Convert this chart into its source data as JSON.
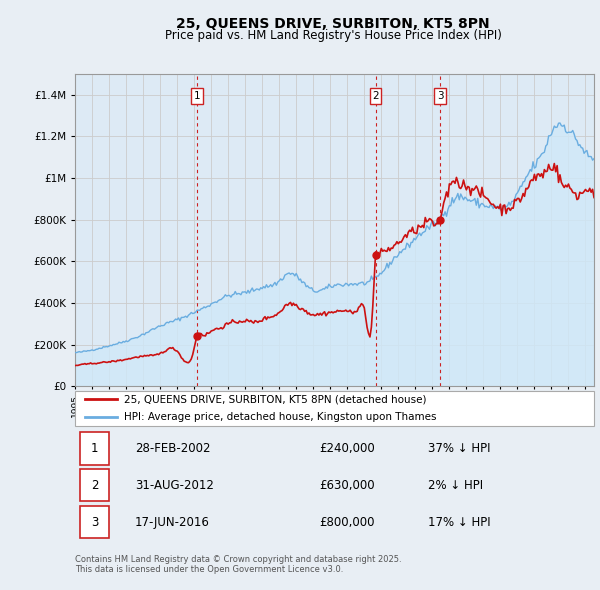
{
  "title": "25, QUEENS DRIVE, SURBITON, KT5 8PN",
  "subtitle": "Price paid vs. HM Land Registry's House Price Index (HPI)",
  "legend_entries": [
    "25, QUEENS DRIVE, SURBITON, KT5 8PN (detached house)",
    "HPI: Average price, detached house, Kingston upon Thames"
  ],
  "transactions": [
    {
      "label": "1",
      "date": "28-FEB-2002",
      "price": 240000,
      "hpi_diff": "37% ↓ HPI",
      "x_year": 2002.16
    },
    {
      "label": "2",
      "date": "31-AUG-2012",
      "price": 630000,
      "hpi_diff": "2% ↓ HPI",
      "x_year": 2012.66
    },
    {
      "label": "3",
      "date": "17-JUN-2016",
      "price": 800000,
      "hpi_diff": "17% ↓ HPI",
      "x_year": 2016.46
    }
  ],
  "footer": "Contains HM Land Registry data © Crown copyright and database right 2025.\nThis data is licensed under the Open Government Licence v3.0.",
  "ylim": [
    0,
    1500000
  ],
  "xlim_start": 1995.0,
  "xlim_end": 2025.5,
  "hpi_color": "#6aade0",
  "hpi_fill_color": "#d0e8f8",
  "price_color": "#cc1111",
  "marker_vline_color": "#cc2222",
  "grid_color": "#cccccc",
  "background_color": "#e8eef4",
  "plot_bg_color": "#ddeaf5",
  "tick_label_color": "#222222"
}
